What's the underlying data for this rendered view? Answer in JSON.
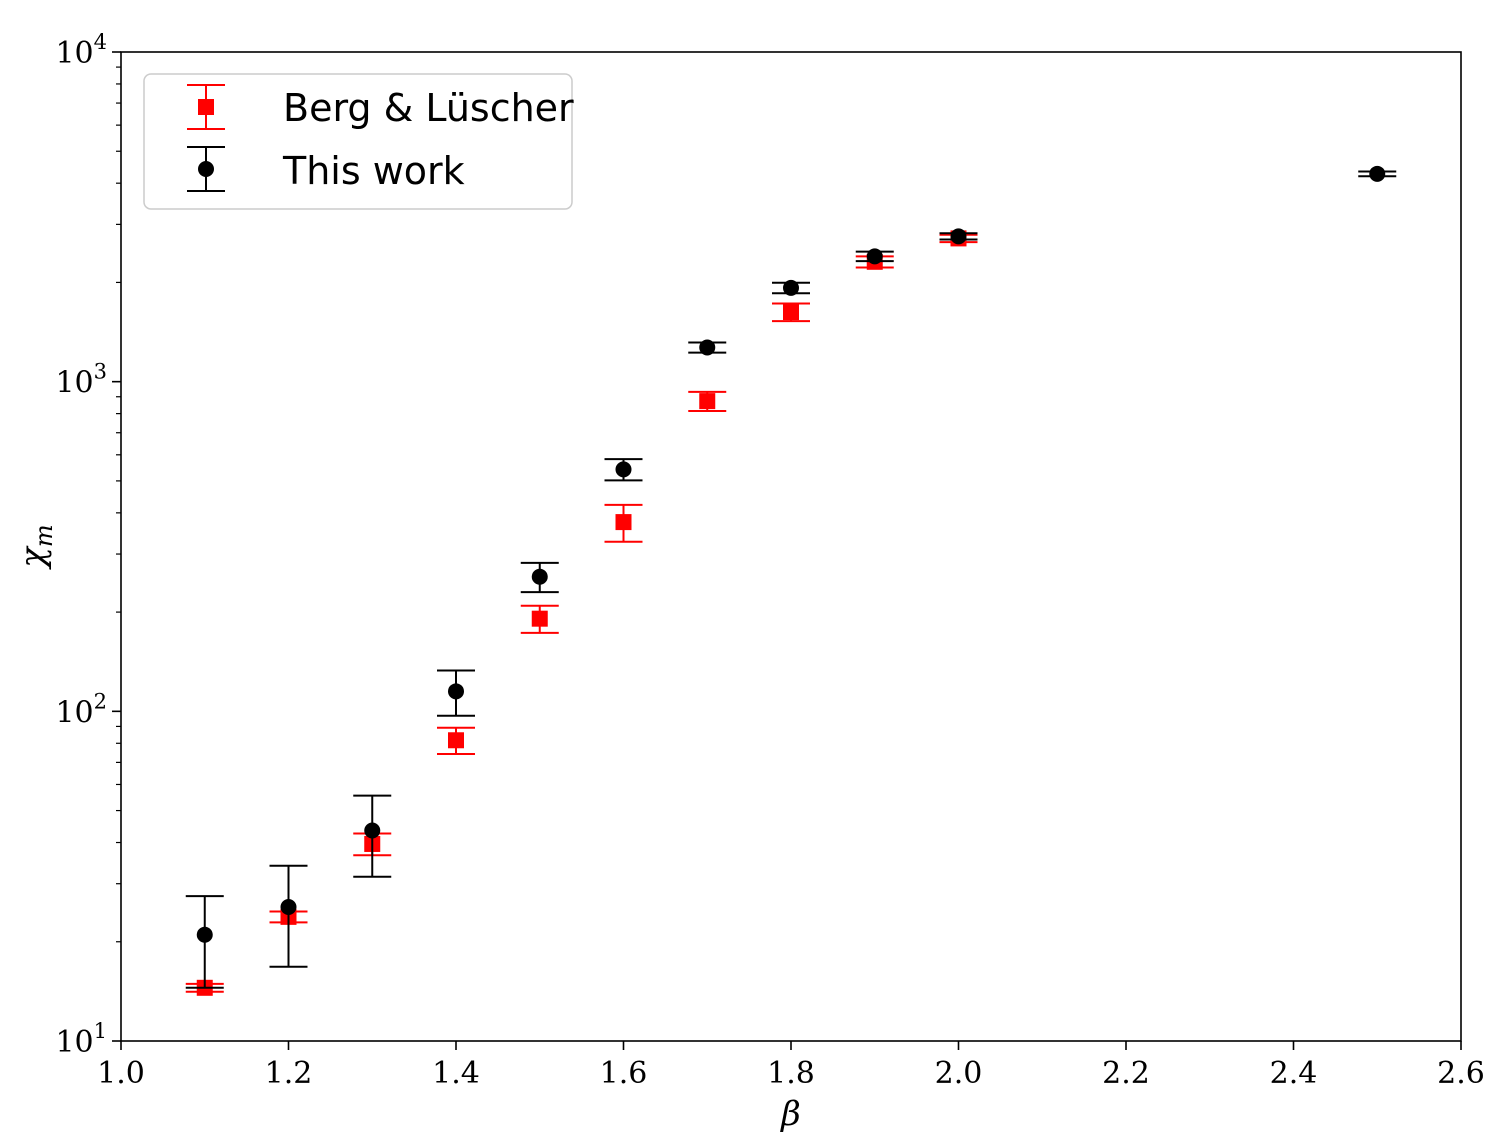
{
  "chart_data": {
    "type": "scatter",
    "xlabel": "β",
    "ylabel": "χ",
    "ylabel_sub": "m",
    "x_scale": "linear",
    "y_scale": "log",
    "xlim": [
      1.0,
      2.6
    ],
    "ylim": [
      10,
      10000
    ],
    "x_ticks": [
      1.0,
      1.2,
      1.4,
      1.6,
      1.8,
      2.0,
      2.2,
      2.4,
      2.6
    ],
    "x_tick_labels": [
      "1.0",
      "1.2",
      "1.4",
      "1.6",
      "1.8",
      "2.0",
      "2.2",
      "2.4",
      "2.6"
    ],
    "y_ticks": [
      10,
      100,
      1000,
      10000
    ],
    "y_tick_labels": [
      {
        "base": "10",
        "exp": "1"
      },
      {
        "base": "10",
        "exp": "2"
      },
      {
        "base": "10",
        "exp": "3"
      },
      {
        "base": "10",
        "exp": "4"
      }
    ],
    "grid": false,
    "legend_position": "top-left",
    "series": [
      {
        "name": "Berg & Lüscher",
        "color": "#ff0000",
        "marker": "square",
        "points": [
          {
            "x": 1.1,
            "y": 14.5,
            "err_low": 14.1,
            "err_high": 14.9
          },
          {
            "x": 1.2,
            "y": 23.8,
            "err_low": 22.9,
            "err_high": 24.7
          },
          {
            "x": 1.3,
            "y": 39.6,
            "err_low": 36.6,
            "err_high": 42.6
          },
          {
            "x": 1.4,
            "y": 81.7,
            "err_low": 74.2,
            "err_high": 89.2
          },
          {
            "x": 1.5,
            "y": 191,
            "err_low": 173,
            "err_high": 209
          },
          {
            "x": 1.6,
            "y": 375,
            "err_low": 327,
            "err_high": 423
          },
          {
            "x": 1.7,
            "y": 873,
            "err_low": 815,
            "err_high": 931
          },
          {
            "x": 1.8,
            "y": 1626,
            "err_low": 1526,
            "err_high": 1726
          },
          {
            "x": 1.9,
            "y": 2310,
            "err_low": 2220,
            "err_high": 2400
          },
          {
            "x": 2.0,
            "y": 2720,
            "err_low": 2650,
            "err_high": 2790
          }
        ]
      },
      {
        "name": "This work",
        "color": "#000000",
        "marker": "circle",
        "points": [
          {
            "x": 1.1,
            "y": 21,
            "err_low": 14.5,
            "err_high": 27.5
          },
          {
            "x": 1.2,
            "y": 25.5,
            "err_low": 16.8,
            "err_high": 34
          },
          {
            "x": 1.3,
            "y": 43.5,
            "err_low": 31.5,
            "err_high": 55.5
          },
          {
            "x": 1.4,
            "y": 115,
            "err_low": 97,
            "err_high": 133
          },
          {
            "x": 1.5,
            "y": 256,
            "err_low": 230,
            "err_high": 282
          },
          {
            "x": 1.6,
            "y": 542,
            "err_low": 502,
            "err_high": 582
          },
          {
            "x": 1.7,
            "y": 1270,
            "err_low": 1225,
            "err_high": 1315
          },
          {
            "x": 1.8,
            "y": 1925,
            "err_low": 1855,
            "err_high": 1995
          },
          {
            "x": 1.9,
            "y": 2400,
            "err_low": 2320,
            "err_high": 2480
          },
          {
            "x": 2.0,
            "y": 2760,
            "err_low": 2700,
            "err_high": 2820
          },
          {
            "x": 2.5,
            "y": 4270,
            "err_low": 4200,
            "err_high": 4340
          }
        ]
      }
    ]
  }
}
